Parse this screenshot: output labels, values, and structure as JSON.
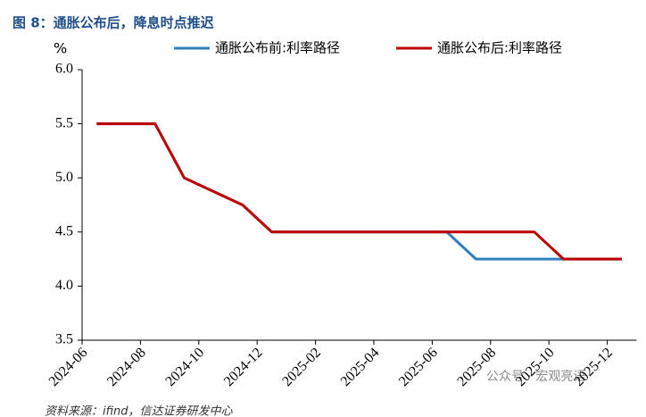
{
  "chart_data": {
    "type": "line",
    "title": "图 8：通胀公布后，降息时点推迟",
    "y_unit": "%",
    "categories": [
      "2024-06",
      null,
      "2024-08",
      null,
      "2024-10",
      null,
      "2024-12",
      null,
      "2025-02",
      null,
      "2025-04",
      null,
      "2025-06",
      null,
      "2025-08",
      null,
      "2025-10",
      null,
      "2025-12"
    ],
    "series": [
      {
        "name": "通胀公布前:利率路径",
        "color": "#2f7fc1",
        "values": [
          5.5,
          5.5,
          5.5,
          5.0,
          4.875,
          4.75,
          4.5,
          4.5,
          4.5,
          4.5,
          4.5,
          4.5,
          4.5,
          4.25,
          4.25,
          4.25,
          4.25,
          4.25,
          4.25
        ]
      },
      {
        "name": "通胀公布后:利率路径",
        "color": "#c00000",
        "values": [
          5.5,
          5.5,
          5.5,
          5.0,
          4.875,
          4.75,
          4.5,
          4.5,
          4.5,
          4.5,
          4.5,
          4.5,
          4.5,
          4.5,
          4.5,
          4.5,
          4.25,
          4.25,
          4.25
        ]
      }
    ],
    "ylim": [
      3.5,
      6.0
    ],
    "yticks": [
      {
        "value": 3.5,
        "label": "3.5"
      },
      {
        "value": 4.0,
        "label": "4.0"
      },
      {
        "value": 4.5,
        "label": "4.5"
      },
      {
        "value": 5.0,
        "label": "5.0"
      },
      {
        "value": 5.5,
        "label": "5.5"
      },
      {
        "value": 6.0,
        "label": "6.0"
      }
    ],
    "source": "资料来源：ifind，信达证券研发中心",
    "watermark": "公众号 · 宏观亮语"
  }
}
